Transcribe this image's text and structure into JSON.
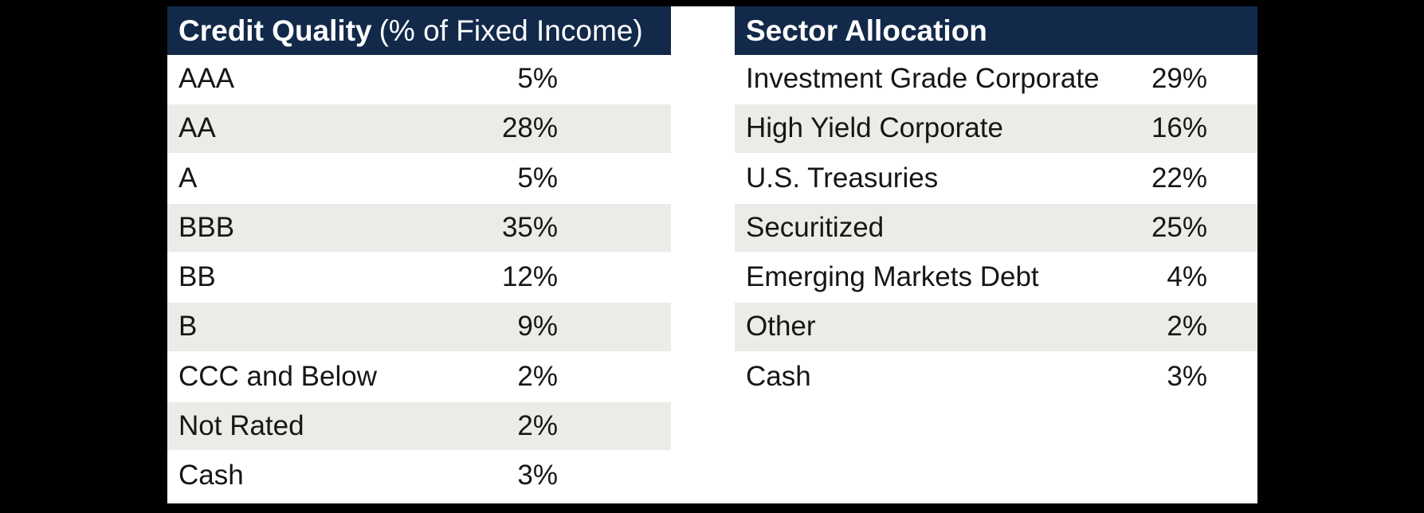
{
  "page": {
    "background_color": "#000000",
    "canvas_color": "#ffffff"
  },
  "colors": {
    "header_bg": "#12294a",
    "header_text": "#ffffff",
    "row_alt_bg": "#ecebe7",
    "row_text": "#161616"
  },
  "tables": [
    {
      "name": "credit-quality",
      "header": {
        "title": "Credit Quality",
        "suffix": "(% of Fixed Income)"
      },
      "rows": [
        {
          "label": "AAA",
          "value": "5%"
        },
        {
          "label": "AA",
          "value": "28%"
        },
        {
          "label": "A",
          "value": "5%"
        },
        {
          "label": "BBB",
          "value": "35%"
        },
        {
          "label": "BB",
          "value": "12%"
        },
        {
          "label": "B",
          "value": "9%"
        },
        {
          "label": "CCC and Below",
          "value": "2%"
        },
        {
          "label": "Not Rated",
          "value": "2%"
        },
        {
          "label": "Cash",
          "value": "3%"
        }
      ]
    },
    {
      "name": "sector-allocation",
      "header": {
        "title": "Sector Allocation",
        "suffix": ""
      },
      "rows": [
        {
          "label": "Investment Grade Corporate",
          "value": "29%"
        },
        {
          "label": "High Yield Corporate",
          "value": "16%"
        },
        {
          "label": "U.S. Treasuries",
          "value": "22%"
        },
        {
          "label": "Securitized",
          "value": "25%"
        },
        {
          "label": "Emerging Markets Debt",
          "value": "4%"
        },
        {
          "label": "Other",
          "value": "2%"
        },
        {
          "label": "Cash",
          "value": "3%"
        }
      ]
    }
  ],
  "chart_data": [
    {
      "type": "table",
      "title": "Credit Quality (% of Fixed Income)",
      "categories": [
        "AAA",
        "AA",
        "A",
        "BBB",
        "BB",
        "B",
        "CCC and Below",
        "Not Rated",
        "Cash"
      ],
      "values": [
        5,
        28,
        5,
        35,
        12,
        9,
        2,
        2,
        3
      ]
    },
    {
      "type": "table",
      "title": "Sector Allocation",
      "categories": [
        "Investment Grade Corporate",
        "High Yield Corporate",
        "U.S. Treasuries",
        "Securitized",
        "Emerging Markets Debt",
        "Other",
        "Cash"
      ],
      "values": [
        29,
        16,
        22,
        25,
        4,
        2,
        3
      ]
    }
  ]
}
